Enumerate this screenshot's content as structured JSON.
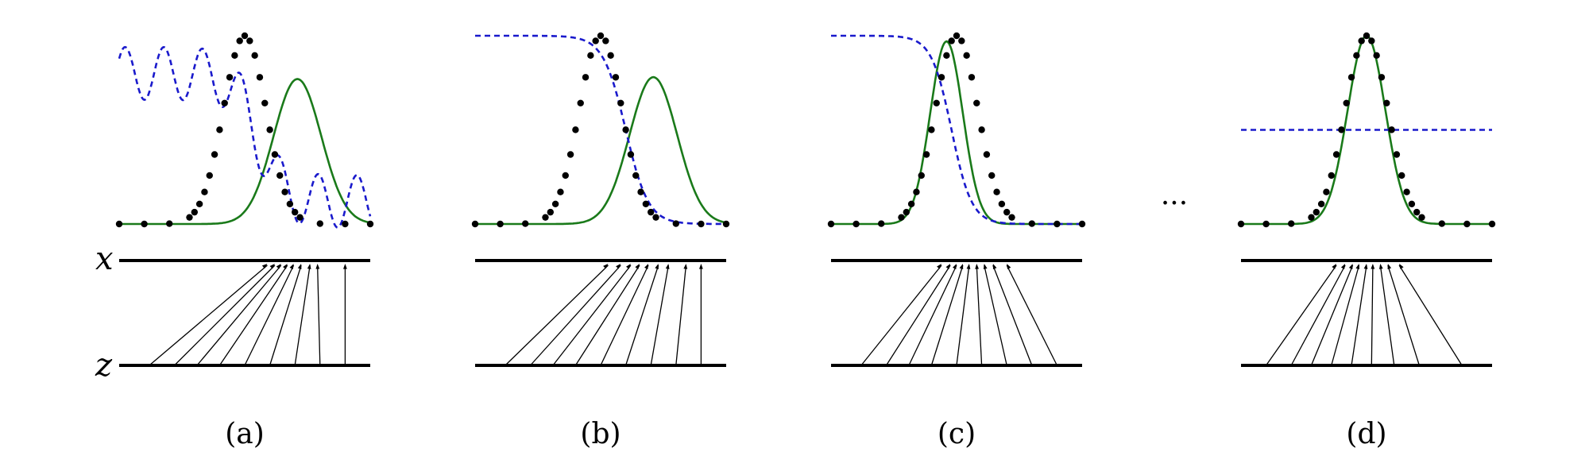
{
  "axis_labels": {
    "x": "x",
    "z": "z"
  },
  "ellipsis": "···",
  "colors": {
    "data": "#000000",
    "generator": "#1a7a1a",
    "discriminator": "#1a1acc"
  },
  "panels": [
    {
      "caption": "(a)",
      "generator_mean": 0.71,
      "generator_width": 0.095,
      "generator_height": 0.77,
      "disc_type": "wavy",
      "arrow_tops": [
        0.59,
        0.62,
        0.645,
        0.67,
        0.695,
        0.725,
        0.76,
        0.79,
        0.9
      ],
      "arrow_bottoms": [
        0.12,
        0.22,
        0.31,
        0.4,
        0.5,
        0.6,
        0.7,
        0.8,
        0.9
      ]
    },
    {
      "caption": "(b)",
      "generator_mean": 0.71,
      "generator_width": 0.095,
      "generator_height": 0.78,
      "disc_type": "sigmoid",
      "disc_center": 0.6,
      "disc_steepness": 0.045,
      "arrow_tops": [
        0.53,
        0.58,
        0.62,
        0.655,
        0.69,
        0.73,
        0.77,
        0.84,
        0.9
      ],
      "arrow_bottoms": [
        0.12,
        0.22,
        0.31,
        0.4,
        0.5,
        0.6,
        0.7,
        0.8,
        0.9
      ]
    },
    {
      "caption": "(c)",
      "generator_mean": 0.46,
      "generator_width": 0.065,
      "generator_height": 0.97,
      "disc_type": "sigmoid",
      "disc_center": 0.48,
      "disc_steepness": 0.04,
      "arrow_tops": [
        0.44,
        0.475,
        0.5,
        0.525,
        0.55,
        0.58,
        0.61,
        0.645,
        0.7
      ],
      "arrow_bottoms": [
        0.12,
        0.22,
        0.31,
        0.4,
        0.5,
        0.6,
        0.7,
        0.8,
        0.9
      ]
    },
    {
      "caption": "(d)",
      "generator_mean": 0.5,
      "generator_width": 0.075,
      "generator_height": 1.0,
      "disc_type": "flat",
      "disc_level": 0.5,
      "arrow_tops": [
        0.38,
        0.415,
        0.445,
        0.47,
        0.5,
        0.525,
        0.555,
        0.585,
        0.63
      ],
      "arrow_bottoms": [
        0.1,
        0.2,
        0.28,
        0.36,
        0.44,
        0.52,
        0.61,
        0.71,
        0.88
      ]
    }
  ]
}
